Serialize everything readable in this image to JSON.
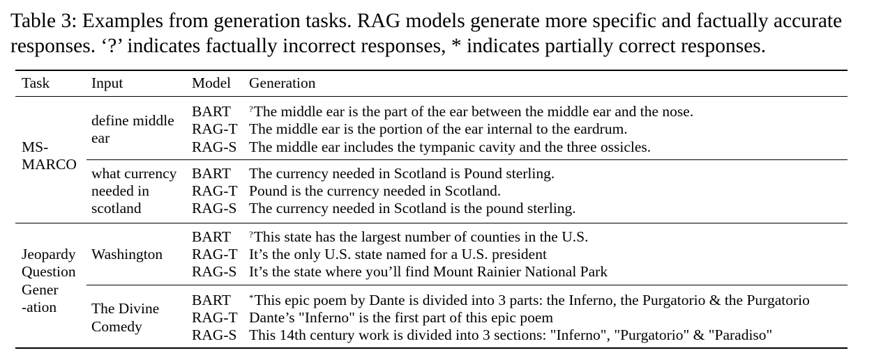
{
  "caption": {
    "line1": "Table 3: Examples from generation tasks. RAG models generate more specific and factually accurate",
    "line2": "responses. ‘?’ indicates factually incorrect responses, * indicates partially correct responses."
  },
  "headers": {
    "task": "Task",
    "input": "Input",
    "model": "Model",
    "generation": "Generation"
  },
  "groups": [
    {
      "task_lines": [
        "MS-",
        "MARCO"
      ],
      "examples": [
        {
          "input_lines": [
            "define middle",
            "ear"
          ],
          "rows": [
            {
              "model": "BART",
              "mark": "?",
              "text": "The middle ear is the part of the ear between the middle ear and the nose."
            },
            {
              "model": "RAG-T",
              "mark": "",
              "text": "The middle ear is the portion of the ear internal to the eardrum."
            },
            {
              "model": "RAG-S",
              "mark": "",
              "text": "The middle ear includes the tympanic cavity and the three ossicles."
            }
          ]
        },
        {
          "input_lines": [
            "what currency",
            "needed in",
            "scotland"
          ],
          "rows": [
            {
              "model": "BART",
              "mark": "",
              "text": "The currency needed in Scotland is Pound sterling."
            },
            {
              "model": "RAG-T",
              "mark": "",
              "text": "Pound is the currency needed in Scotland."
            },
            {
              "model": "RAG-S",
              "mark": "",
              "text": "The currency needed in Scotland is the pound sterling."
            }
          ]
        }
      ]
    },
    {
      "task_lines": [
        "Jeopardy",
        "Question",
        "Gener",
        "-ation"
      ],
      "examples": [
        {
          "input_lines": [
            "Washington"
          ],
          "rows": [
            {
              "model": "BART",
              "mark": "?",
              "text": "This state has the largest number of counties in the U.S."
            },
            {
              "model": "RAG-T",
              "mark": "",
              "text": "It’s the only U.S. state named for a U.S. president"
            },
            {
              "model": "RAG-S",
              "mark": "",
              "text": "It’s the state where you’ll find Mount Rainier National Park"
            }
          ]
        },
        {
          "input_lines": [
            "The Divine",
            "Comedy"
          ],
          "rows": [
            {
              "model": "BART",
              "mark": "*",
              "text": "This epic poem by Dante is divided into 3 parts: the Inferno, the Purgatorio & the Purgatorio"
            },
            {
              "model": "RAG-T",
              "mark": "",
              "text": "Dante’s \"Inferno\" is the first part of this epic poem"
            },
            {
              "model": "RAG-S",
              "mark": "",
              "text": "This 14th century work is divided into 3 sections: \"Inferno\", \"Purgatorio\" & \"Paradiso\""
            }
          ]
        }
      ]
    }
  ]
}
